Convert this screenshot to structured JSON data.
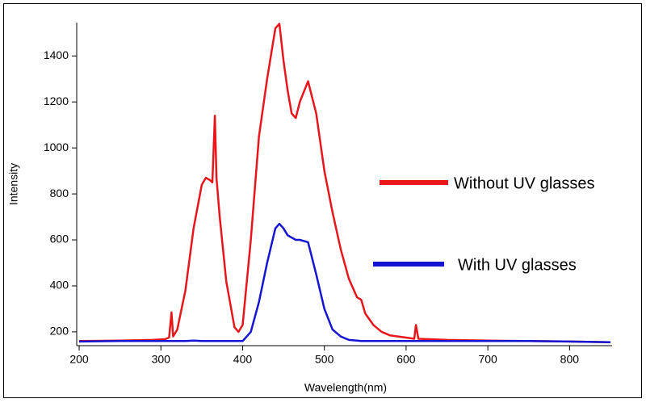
{
  "chart_data": {
    "type": "line",
    "x_label": "Wavelength(nm)",
    "y_label": "Intensity",
    "x": [
      200,
      250,
      290,
      305,
      310,
      313,
      315,
      320,
      330,
      340,
      350,
      355,
      360,
      363,
      366,
      368,
      372,
      380,
      390,
      395,
      400,
      410,
      420,
      430,
      440,
      445,
      450,
      455,
      460,
      465,
      470,
      480,
      490,
      500,
      510,
      520,
      530,
      540,
      545,
      550,
      560,
      570,
      580,
      600,
      610,
      612,
      615,
      650,
      700,
      750,
      800,
      850
    ],
    "series": [
      {
        "name": "Without UV glasses",
        "color": "#e8161b",
        "values": [
          160,
          162,
          165,
          168,
          175,
          285,
          180,
          210,
          380,
          650,
          840,
          870,
          860,
          850,
          1140,
          870,
          700,
          420,
          220,
          200,
          230,
          600,
          1050,
          1300,
          1520,
          1540,
          1380,
          1250,
          1150,
          1130,
          1200,
          1290,
          1150,
          900,
          720,
          560,
          430,
          350,
          340,
          280,
          230,
          200,
          185,
          175,
          170,
          230,
          170,
          165,
          162,
          160,
          158,
          155
        ]
      },
      {
        "name": "With UV glasses",
        "color": "#1414d2",
        "values": [
          158,
          160,
          160,
          160,
          160,
          160,
          160,
          160,
          160,
          162,
          160,
          160,
          160,
          160,
          160,
          160,
          160,
          160,
          160,
          160,
          160,
          200,
          330,
          500,
          650,
          670,
          650,
          620,
          610,
          600,
          600,
          590,
          450,
          300,
          210,
          180,
          165,
          162,
          160,
          160,
          160,
          160,
          160,
          160,
          160,
          160,
          160,
          160,
          160,
          160,
          158,
          155
        ]
      }
    ],
    "xlim": [
      197,
      852
    ],
    "ylim": [
      140,
      1545
    ],
    "xticks": [
      200,
      300,
      400,
      500,
      600,
      700,
      800
    ],
    "yticks": [
      200,
      400,
      600,
      800,
      1000,
      1200,
      1400
    ],
    "legend": "right",
    "grid": false
  }
}
